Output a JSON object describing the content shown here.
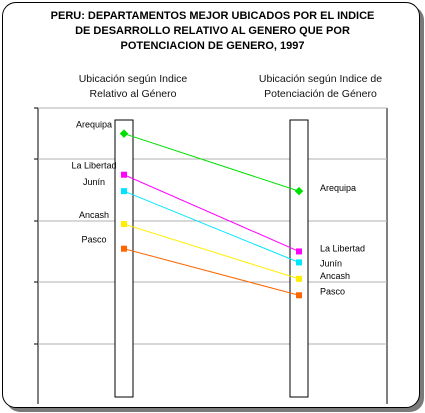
{
  "chart_data": {
    "type": "slope",
    "title_lines": [
      "PERU:  DEPARTAMENTOS MEJOR UBICADOS POR EL INDICE",
      "DE DESARROLLO RELATIVO AL GENERO QUE POR",
      "POTENCIACION DE GENERO, 1997"
    ],
    "left_axis_label": [
      "Ubicación según Indice",
      "Relativo al Género"
    ],
    "right_axis_label": [
      "Ubicación según Indice de",
      "Potenciación de Género"
    ],
    "rank_range": [
      1,
      10
    ],
    "series": [
      {
        "label": "Arequipa",
        "left_rank": 2.3,
        "right_rank": 4.4,
        "color": "#00e000"
      },
      {
        "label": "La Libertad",
        "left_rank": 3.8,
        "right_rank": 6.6,
        "color": "#ff00ff"
      },
      {
        "label": "Junín",
        "left_rank": 4.4,
        "right_rank": 7.0,
        "color": "#00e5ff"
      },
      {
        "label": "Ancash",
        "left_rank": 5.6,
        "right_rank": 7.6,
        "color": "#ffee00"
      },
      {
        "label": "Pasco",
        "left_rank": 6.5,
        "right_rank": 8.2,
        "color": "#ff6600"
      }
    ]
  }
}
